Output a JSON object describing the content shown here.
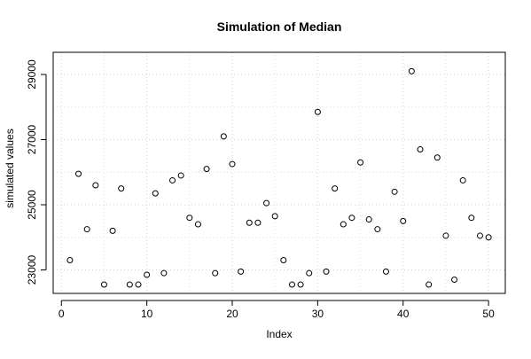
{
  "chart_data": {
    "type": "scatter",
    "title": "Simulation of Median",
    "xlabel": "Index",
    "ylabel": "simulated values",
    "xlim": [
      -0.96,
      51.96
    ],
    "ylim": [
      22279,
      29681
    ],
    "xticks": [
      0,
      10,
      20,
      30,
      40,
      50
    ],
    "yticks": [
      23000,
      25000,
      27000,
      29000
    ],
    "xtick_labels": [
      "0",
      "10",
      "20",
      "30",
      "40",
      "50"
    ],
    "ytick_labels": [
      "23000",
      "25000",
      "27000",
      "29000"
    ],
    "grid": true,
    "x": [
      1,
      2,
      3,
      4,
      5,
      6,
      7,
      8,
      9,
      10,
      11,
      12,
      13,
      14,
      15,
      16,
      17,
      18,
      19,
      20,
      21,
      22,
      23,
      24,
      25,
      26,
      27,
      28,
      29,
      30,
      31,
      32,
      33,
      34,
      35,
      36,
      37,
      38,
      39,
      40,
      41,
      42,
      43,
      44,
      45,
      46,
      47,
      48,
      49,
      50
    ],
    "y": [
      23300,
      25950,
      24250,
      25600,
      22550,
      24200,
      25500,
      22550,
      22550,
      22850,
      25350,
      22900,
      25750,
      25900,
      24600,
      24400,
      26100,
      22900,
      27100,
      26250,
      22950,
      24450,
      24450,
      25050,
      24650,
      23300,
      22550,
      22550,
      22900,
      27850,
      22950,
      25500,
      24400,
      24600,
      26300,
      24550,
      24250,
      22950,
      25400,
      24500,
      29100,
      26700,
      22550,
      26450,
      24050,
      22700,
      25750,
      24600,
      24050,
      24000
    ]
  }
}
